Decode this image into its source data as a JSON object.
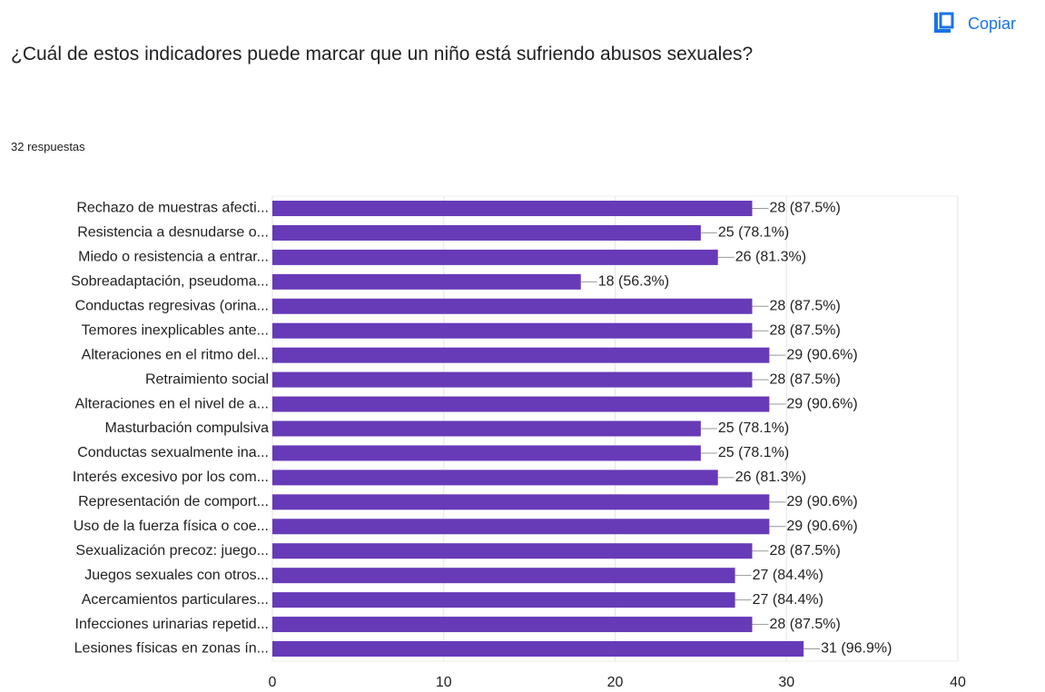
{
  "chart_data": {
    "type": "bar",
    "orientation": "horizontal",
    "title": "¿Cuál de estos indicadores puede marcar que un niño está sufriendo abusos sexuales?",
    "subtitle": "32 respuestas",
    "action": "Copiar",
    "categories": [
      "Rechazo de muestras afecti...",
      "Resistencia a desnudarse o...",
      "Miedo o resistencia a entrar...",
      "Sobreadaptación, pseudoma...",
      "Conductas regresivas (orina...",
      "Temores inexplicables ante...",
      "Alteraciones en el ritmo del...",
      "Retraimiento social",
      "Alteraciones en el nivel de a...",
      "Masturbación compulsiva",
      "Conductas sexualmente ina...",
      "Interés excesivo por los com...",
      "Representación de comport...",
      "Uso de la fuerza física o coe...",
      "Sexualización precoz: juego...",
      "Juegos sexuales con otros...",
      "Acercamientos particulares...",
      "Infecciones urinarias repetid...",
      "Lesiones físicas en zonas ín..."
    ],
    "values": [
      28,
      25,
      26,
      18,
      28,
      28,
      29,
      28,
      29,
      25,
      25,
      26,
      29,
      29,
      28,
      27,
      27,
      28,
      31
    ],
    "value_labels": [
      "28 (87.5%)",
      "25 (78.1%)",
      "26 (81.3%)",
      "18 (56.3%)",
      "28 (87.5%)",
      "28 (87.5%)",
      "29 (90.6%)",
      "28 (87.5%)",
      "29 (90.6%)",
      "25 (78.1%)",
      "25 (78.1%)",
      "26 (81.3%)",
      "29 (90.6%)",
      "29 (90.6%)",
      "28 (87.5%)",
      "27 (84.4%)",
      "27 (84.4%)",
      "28 (87.5%)",
      "31 (96.9%)"
    ],
    "color": "#673ab7",
    "xlim": [
      0,
      40
    ],
    "xticks": [
      0,
      10,
      20,
      30,
      40
    ],
    "grid": true
  }
}
